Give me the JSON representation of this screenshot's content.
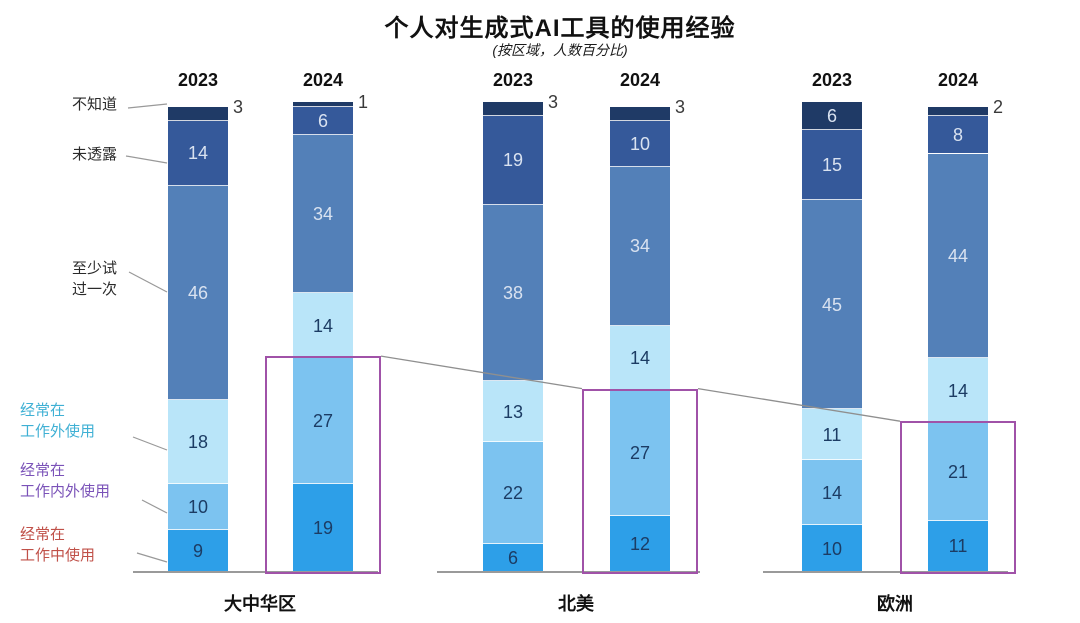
{
  "title": "个人对生成式AI工具的使用经验",
  "subtitle": "(按区域，人数百分比)",
  "chart_data": {
    "type": "bar",
    "stacked": true,
    "value_unit": "percent",
    "title": "个人对生成式AI工具的使用经验",
    "subtitle": "(按区域，人数百分比)",
    "series_order_top_to_bottom": [
      "不知道",
      "未透露",
      "至少试过一次",
      "经常在工作外使用",
      "经常在工作内外使用",
      "经常在工作中使用"
    ],
    "categories": [
      {
        "label": "不知道",
        "line1": "不知道",
        "line2": "",
        "color": "#1f3a66",
        "text_color": "#2a2a2a",
        "value_text_color": "#d9e2f0"
      },
      {
        "label": "未透露",
        "line1": "未透露",
        "line2": "",
        "color": "#35599a",
        "text_color": "#2a2a2a",
        "value_text_color": "#d9e2f0"
      },
      {
        "label": "至少试过一次",
        "line1": "至少试",
        "line2": "过一次",
        "color": "#5380b8",
        "text_color": "#2a2a2a",
        "value_text_color": "#d9e2f0"
      },
      {
        "label": "经常在工作外使用",
        "line1": "经常在",
        "line2": "工作外使用",
        "color": "#b9e5f9",
        "text_color": "#3fb0d4",
        "value_text_color": "#1c3c64"
      },
      {
        "label": "经常在工作内外使用",
        "line1": "经常在",
        "line2": "工作内外使用",
        "color": "#7cc3f0",
        "text_color": "#7a52b8",
        "value_text_color": "#1c3c64"
      },
      {
        "label": "经常在工作中使用",
        "line1": "经常在",
        "line2": "工作中使用",
        "color": "#2d9fe8",
        "text_color": "#c05048",
        "value_text_color": "#1c3c64"
      }
    ],
    "groups": [
      {
        "region": "大中华区",
        "bars": [
          {
            "year": "2023",
            "values": [
              3,
              14,
              46,
              18,
              10,
              9
            ],
            "highlighted": false
          },
          {
            "year": "2024",
            "values": [
              1,
              6,
              34,
              14,
              27,
              19
            ],
            "highlighted": true
          }
        ]
      },
      {
        "region": "北美",
        "bars": [
          {
            "year": "2023",
            "values": [
              3,
              19,
              38,
              13,
              22,
              6
            ],
            "highlighted": false
          },
          {
            "year": "2024",
            "values": [
              3,
              10,
              34,
              14,
              27,
              12
            ],
            "highlighted": true
          }
        ]
      },
      {
        "region": "欧洲",
        "bars": [
          {
            "year": "2023",
            "values": [
              6,
              15,
              45,
              11,
              14,
              10
            ],
            "highlighted": false
          },
          {
            "year": "2024",
            "values": [
              2,
              8,
              44,
              14,
              21,
              11
            ],
            "highlighted": true
          }
        ]
      }
    ],
    "highlight_box_color": "#a052a8",
    "connector_line_color": "#8f8f8f",
    "baseline_color": "#9a9a9a",
    "legend_position": "left",
    "grid": false,
    "ylim": [
      0,
      100
    ]
  }
}
